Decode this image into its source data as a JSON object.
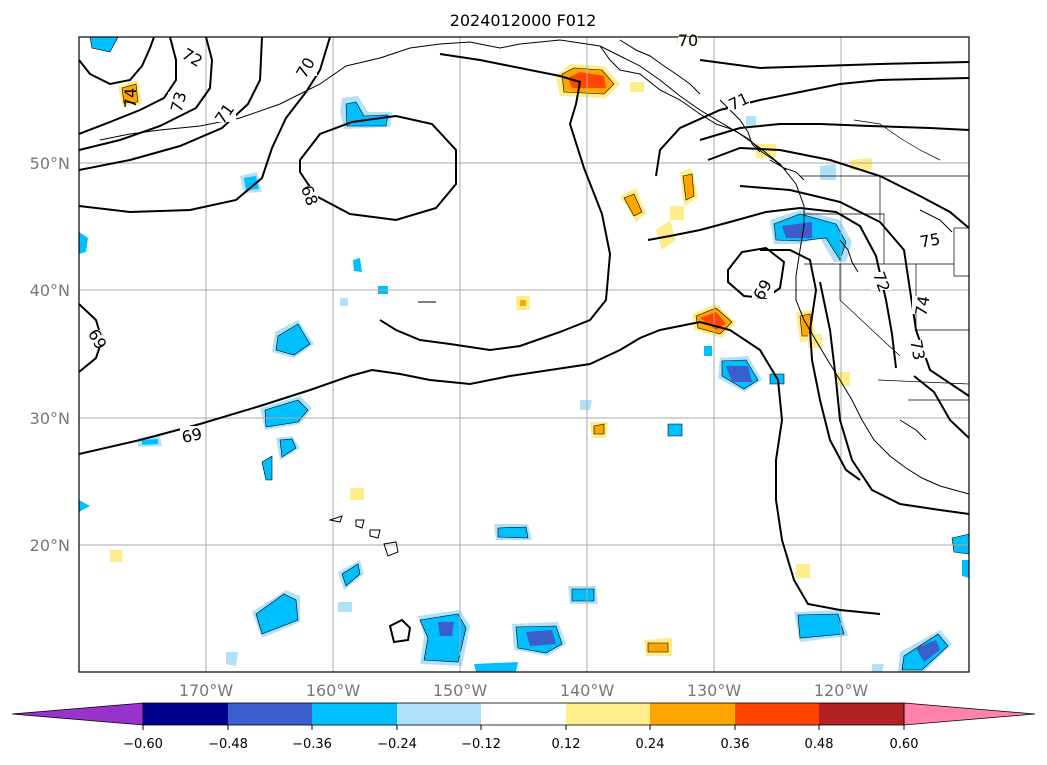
{
  "title": "2024012000 F012",
  "lat_labels": [
    "50°N",
    "40°N",
    "30°N",
    "20°N"
  ],
  "lon_labels": [
    "170°W",
    "160°W",
    "150°W",
    "140°W",
    "130°W",
    "120°W"
  ],
  "colorbar": {
    "tick_labels": [
      "−0.60",
      "−0.48",
      "−0.36",
      "−0.24",
      "−0.12",
      "0.12",
      "0.24",
      "0.36",
      "0.48",
      "0.60"
    ],
    "colors": [
      "#9932cc",
      "#00008b",
      "#3a5fcd",
      "#00bfff",
      "#afe2fa",
      "#ffffff",
      "#ffec8b",
      "#ffa500",
      "#ff4500",
      "#b22222",
      "#ff82ab"
    ]
  },
  "contour_labels": [
    "72",
    "70",
    "73",
    "74",
    "71",
    "68",
    "69",
    "69",
    "69",
    "71",
    "75",
    "72",
    "74",
    "73",
    "70"
  ]
}
